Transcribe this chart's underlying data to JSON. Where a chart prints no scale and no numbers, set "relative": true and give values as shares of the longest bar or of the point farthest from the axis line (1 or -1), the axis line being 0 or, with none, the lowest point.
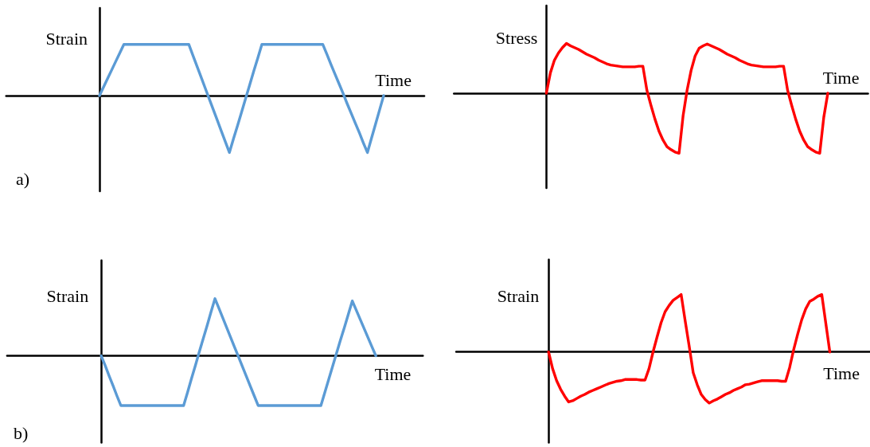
{
  "chart_data": [
    {
      "type": "line",
      "ylabel": "Strain",
      "xlabel": "Time",
      "relative": true,
      "color": "#5b9bd5",
      "marker": "none",
      "line_style": "solid",
      "annotations": [
        "a)"
      ],
      "categories": [
        null,
        null,
        null,
        null,
        null,
        null,
        null,
        null,
        null,
        null,
        null,
        null,
        null,
        null,
        null,
        null,
        null,
        null,
        null,
        null,
        null,
        null,
        null,
        null,
        null,
        null,
        null,
        null,
        null,
        null,
        null,
        null,
        null,
        null,
        null,
        null,
        null,
        null,
        null,
        null,
        null,
        null,
        null,
        null,
        null,
        null,
        null,
        null,
        null,
        null,
        null,
        null,
        null,
        null,
        null,
        null,
        null,
        null,
        null,
        null,
        null,
        null,
        null,
        null,
        null,
        null,
        null,
        null,
        null,
        null,
        null,
        null,
        null,
        null,
        null,
        null,
        null,
        null,
        null,
        null,
        null,
        null,
        null,
        null,
        null,
        null,
        null,
        null,
        null,
        null,
        null,
        null,
        null,
        null,
        null,
        null,
        null,
        null,
        null,
        null,
        null,
        null,
        null,
        null
      ],
      "values": [
        null,
        null,
        null,
        null,
        null,
        null,
        null,
        null,
        null,
        null,
        null,
        null,
        null,
        null,
        null,
        null,
        null,
        null,
        null,
        null,
        null,
        null,
        null,
        0,
        0.15,
        0.3,
        0.45,
        0.6,
        0.75,
        0.9,
        0.9,
        0.9,
        0.9,
        0.9,
        0.9,
        0.9,
        0.9,
        0.9,
        0.9,
        0.9,
        0.9,
        0.9,
        0.9,
        0.9,
        0.9,
        0.9,
        0.71,
        0.52,
        0.33,
        0.14,
        -0.05,
        -0.24,
        -0.43,
        -0.62,
        -0.81,
        -1,
        -0.76,
        -0.53,
        -0.29,
        -0.05,
        0.19,
        0.43,
        0.66,
        0.9,
        0.9,
        0.9,
        0.9,
        0.9,
        0.9,
        0.9,
        0.9,
        0.9,
        0.9,
        0.9,
        0.9,
        0.9,
        0.9,
        0.9,
        0.9,
        0.73,
        0.55,
        0.38,
        0.21,
        0.04,
        -0.14,
        -0.31,
        -0.48,
        -0.65,
        -0.83,
        -1,
        -0.75,
        -0.5,
        -0.25,
        0,
        null,
        null,
        null,
        null,
        null,
        null,
        null,
        null,
        null,
        null
      ]
    },
    {
      "type": "line",
      "ylabel": "Stress",
      "xlabel": "Time",
      "relative": true,
      "color": "#ff0000",
      "marker": "none",
      "line_style": "solid",
      "categories": [
        null,
        null,
        null,
        null,
        null,
        null,
        null,
        null,
        null,
        null,
        null,
        null,
        null,
        null,
        null,
        null,
        null,
        null,
        null,
        null,
        null,
        null,
        null,
        null,
        null,
        null,
        null,
        null,
        null,
        null,
        null,
        null,
        null,
        null,
        null,
        null,
        null,
        null,
        null,
        null,
        null,
        null,
        null,
        null,
        null,
        null,
        null,
        null,
        null,
        null,
        null,
        null,
        null,
        null,
        null,
        null,
        null,
        null,
        null,
        null,
        null,
        null,
        null,
        null,
        null,
        null,
        null,
        null,
        null,
        null,
        null,
        null,
        null,
        null,
        null,
        null,
        null,
        null,
        null,
        null,
        null,
        null,
        null,
        null,
        null,
        null,
        null,
        null,
        null,
        null,
        null,
        null,
        null,
        null,
        null,
        null,
        null,
        null,
        null,
        null,
        null,
        null,
        null,
        null
      ],
      "values": [
        null,
        null,
        null,
        null,
        null,
        null,
        null,
        null,
        null,
        null,
        null,
        null,
        null,
        null,
        null,
        null,
        null,
        null,
        null,
        null,
        null,
        null,
        null,
        0,
        0.34,
        0.55,
        0.67,
        0.76,
        0.83,
        0.79,
        0.76,
        0.73,
        0.69,
        0.65,
        0.62,
        0.59,
        0.55,
        0.52,
        0.49,
        0.47,
        0.46,
        0.45,
        0.44,
        0.44,
        0.44,
        0.44,
        0.45,
        0.45,
        0.05,
        -0.2,
        -0.43,
        -0.63,
        -0.78,
        -0.89,
        -0.94,
        -0.98,
        -1,
        -0.38,
        0.05,
        0.38,
        0.62,
        0.75,
        0.79,
        0.82,
        0.79,
        0.76,
        0.73,
        0.69,
        0.65,
        0.62,
        0.59,
        0.55,
        0.52,
        0.49,
        0.47,
        0.46,
        0.45,
        0.44,
        0.44,
        0.44,
        0.44,
        0.45,
        0.45,
        0.05,
        -0.2,
        -0.43,
        -0.63,
        -0.78,
        -0.89,
        -0.94,
        -0.98,
        -1,
        -0.4,
        0,
        null,
        null,
        null,
        null,
        null,
        null,
        null,
        null,
        null,
        null
      ]
    },
    {
      "type": "line",
      "ylabel": "Strain",
      "xlabel": "Time",
      "relative": true,
      "color": "#5b9bd5",
      "marker": "none",
      "line_style": "solid",
      "annotations": [
        "b)"
      ],
      "categories": [
        null,
        null,
        null,
        null,
        null,
        null,
        null,
        null,
        null,
        null,
        null,
        null,
        null,
        null,
        null,
        null,
        null,
        null,
        null,
        null,
        null,
        null,
        null,
        null,
        null,
        null,
        null,
        null,
        null,
        null,
        null,
        null,
        null,
        null,
        null,
        null,
        null,
        null,
        null,
        null,
        null,
        null,
        null,
        null,
        null,
        null,
        null,
        null,
        null,
        null,
        null,
        null,
        null,
        null,
        null,
        null,
        null,
        null,
        null,
        null,
        null,
        null,
        null,
        null,
        null,
        null,
        null,
        null,
        null,
        null,
        null,
        null,
        null,
        null,
        null,
        null,
        null,
        null,
        null,
        null,
        null,
        null,
        null,
        null,
        null,
        null,
        null,
        null,
        null,
        null,
        null,
        null,
        null,
        null,
        null,
        null,
        null,
        null,
        null,
        null,
        null,
        null,
        null,
        null,
        null,
        null,
        null
      ],
      "values": [
        null,
        null,
        null,
        null,
        null,
        null,
        null,
        null,
        null,
        null,
        null,
        null,
        null,
        null,
        null,
        null,
        null,
        null,
        null,
        null,
        null,
        null,
        null,
        null,
        0,
        -0.17,
        -0.35,
        -0.52,
        -0.7,
        -0.87,
        -0.87,
        -0.87,
        -0.87,
        -0.87,
        -0.87,
        -0.87,
        -0.87,
        -0.87,
        -0.87,
        -0.87,
        -0.87,
        -0.87,
        -0.87,
        -0.87,
        -0.87,
        -0.87,
        -0.64,
        -0.4,
        -0.17,
        0.07,
        0.3,
        0.53,
        0.77,
        1,
        0.83,
        0.66,
        0.49,
        0.32,
        0.15,
        -0.02,
        -0.19,
        -0.36,
        -0.53,
        -0.7,
        -0.87,
        -0.87,
        -0.87,
        -0.87,
        -0.87,
        -0.87,
        -0.87,
        -0.87,
        -0.87,
        -0.87,
        -0.87,
        -0.87,
        -0.87,
        -0.87,
        -0.87,
        -0.87,
        -0.87,
        -0.64,
        -0.41,
        -0.18,
        0.05,
        0.28,
        0.5,
        0.73,
        0.96,
        0.8,
        0.64,
        0.48,
        0.32,
        0.16,
        0,
        null,
        null,
        null,
        null,
        null,
        null,
        null,
        null,
        null,
        null,
        null,
        null
      ]
    },
    {
      "type": "line",
      "ylabel": "Strain",
      "xlabel": "Time",
      "relative": true,
      "color": "#ff0000",
      "marker": "none",
      "line_style": "solid",
      "categories": [
        null,
        null,
        null,
        null,
        null,
        null,
        null,
        null,
        null,
        null,
        null,
        null,
        null,
        null,
        null,
        null,
        null,
        null,
        null,
        null,
        null,
        null,
        null,
        null,
        null,
        null,
        null,
        null,
        null,
        null,
        null,
        null,
        null,
        null,
        null,
        null,
        null,
        null,
        null,
        null,
        null,
        null,
        null,
        null,
        null,
        null,
        null,
        null,
        null,
        null,
        null,
        null,
        null,
        null,
        null,
        null,
        null,
        null,
        null,
        null,
        null,
        null,
        null,
        null,
        null,
        null,
        null,
        null,
        null,
        null,
        null,
        null,
        null,
        null,
        null,
        null,
        null,
        null,
        null,
        null,
        null,
        null,
        null,
        null,
        null,
        null,
        null,
        null,
        null,
        null,
        null,
        null,
        null,
        null,
        null,
        null,
        null,
        null,
        null,
        null,
        null,
        null,
        null,
        null
      ],
      "values": [
        null,
        null,
        null,
        null,
        null,
        null,
        null,
        null,
        null,
        null,
        null,
        null,
        null,
        null,
        null,
        null,
        null,
        null,
        null,
        null,
        null,
        null,
        null,
        0,
        -0.29,
        -0.5,
        -0.65,
        -0.77,
        -0.87,
        -0.85,
        -0.81,
        -0.77,
        -0.74,
        -0.7,
        -0.67,
        -0.64,
        -0.61,
        -0.58,
        -0.55,
        -0.53,
        -0.51,
        -0.5,
        -0.48,
        -0.48,
        -0.48,
        -0.48,
        -0.49,
        -0.49,
        -0.29,
        0,
        0.26,
        0.51,
        0.7,
        0.81,
        0.9,
        0.95,
        1,
        0.54,
        0.1,
        -0.36,
        -0.57,
        -0.74,
        -0.83,
        -0.89,
        -0.85,
        -0.82,
        -0.78,
        -0.74,
        -0.71,
        -0.67,
        -0.64,
        -0.61,
        -0.57,
        -0.56,
        -0.54,
        -0.52,
        -0.5,
        -0.5,
        -0.5,
        -0.5,
        -0.5,
        -0.51,
        -0.51,
        -0.27,
        0.04,
        0.31,
        0.56,
        0.75,
        0.88,
        0.92,
        0.97,
        1,
        0.5,
        0,
        null,
        null,
        null,
        null,
        null,
        null,
        null,
        null,
        null,
        null
      ]
    }
  ]
}
